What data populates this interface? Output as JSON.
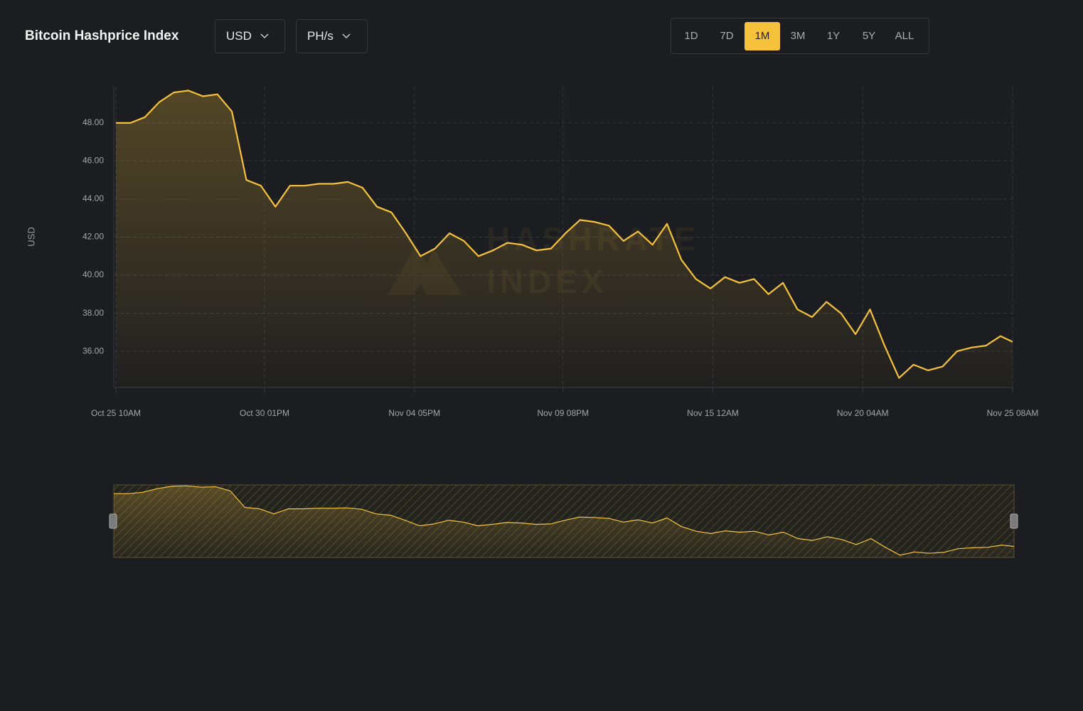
{
  "header": {
    "title": "Bitcoin Hashprice Index",
    "currency": "USD",
    "unit": "PH/s",
    "ranges": [
      "1D",
      "7D",
      "1M",
      "3M",
      "1Y",
      "5Y",
      "ALL"
    ],
    "active_range": "1M"
  },
  "chart_data": {
    "type": "line",
    "y_label": "USD",
    "watermark": [
      "HASHRATE",
      "INDEX"
    ],
    "color": "#f7c23b",
    "x": [
      "Oct 25 10AM",
      "Oct 25 10PM",
      "Oct 26 10AM",
      "Oct 26 10PM",
      "Oct 27 10AM",
      "Oct 27 10PM",
      "Oct 28 10AM",
      "Oct 28 10PM",
      "Oct 29 10AM",
      "Oct 29 10PM",
      "Oct 30 10AM",
      "Oct 30 10PM",
      "Oct 31 10AM",
      "Oct 31 10PM",
      "Nov 01 10AM",
      "Nov 01 10PM",
      "Nov 02 10AM",
      "Nov 02 10PM",
      "Nov 03 10AM",
      "Nov 03 10PM",
      "Nov 04 10AM",
      "Nov 04 10PM",
      "Nov 05 10AM",
      "Nov 05 10PM",
      "Nov 06 10AM",
      "Nov 06 10PM",
      "Nov 07 10AM",
      "Nov 07 10PM",
      "Nov 08 10AM",
      "Nov 08 10PM",
      "Nov 09 10AM",
      "Nov 09 10PM",
      "Nov 10 10AM",
      "Nov 10 10PM",
      "Nov 11 10AM",
      "Nov 11 10PM",
      "Nov 12 10AM",
      "Nov 12 10PM",
      "Nov 13 10AM",
      "Nov 13 10PM",
      "Nov 14 10AM",
      "Nov 14 10PM",
      "Nov 15 10AM",
      "Nov 15 10PM",
      "Nov 16 10AM",
      "Nov 16 10PM",
      "Nov 17 10AM",
      "Nov 17 10PM",
      "Nov 18 10AM",
      "Nov 18 10PM",
      "Nov 19 10AM",
      "Nov 19 10PM",
      "Nov 20 10AM",
      "Nov 20 10PM",
      "Nov 21 10AM",
      "Nov 21 10PM",
      "Nov 22 10AM",
      "Nov 22 10PM",
      "Nov 23 10AM",
      "Nov 23 10PM",
      "Nov 24 10AM",
      "Nov 24 10PM",
      "Nov 25 08AM"
    ],
    "values": [
      48.0,
      48.0,
      48.3,
      49.1,
      49.6,
      49.7,
      49.4,
      49.5,
      48.6,
      45.0,
      44.7,
      43.6,
      44.7,
      44.7,
      44.8,
      44.8,
      44.9,
      44.6,
      43.6,
      43.3,
      42.2,
      41.0,
      41.4,
      42.2,
      41.8,
      41.0,
      41.3,
      41.7,
      41.6,
      41.3,
      41.4,
      42.2,
      42.9,
      42.8,
      42.6,
      41.8,
      42.3,
      41.6,
      42.7,
      40.8,
      39.8,
      39.3,
      39.9,
      39.6,
      39.8,
      39.0,
      39.6,
      38.2,
      37.8,
      38.6,
      38.0,
      36.9,
      38.2,
      36.3,
      34.6,
      35.3,
      35.0,
      35.2,
      36.0,
      36.2,
      36.3,
      36.8,
      36.5
    ],
    "xlim": [
      "Oct 25 10AM",
      "Nov 25 08AM"
    ],
    "xticks": [
      "Oct 25 10AM",
      "Oct 30 01PM",
      "Nov 04 05PM",
      "Nov 09 08PM",
      "Nov 15 12AM",
      "Nov 20 04AM",
      "Nov 25 08AM"
    ],
    "ylim": [
      34.1,
      49.9
    ],
    "yticks": [
      {
        "value": 36,
        "label": "36.00"
      },
      {
        "value": 38,
        "label": "38.00"
      },
      {
        "value": 40,
        "label": "40.00"
      },
      {
        "value": 42,
        "label": "42.00"
      },
      {
        "value": 44,
        "label": "44.00"
      },
      {
        "value": 46,
        "label": "46.00"
      },
      {
        "value": 48,
        "label": "48.00"
      }
    ],
    "grid": true
  }
}
